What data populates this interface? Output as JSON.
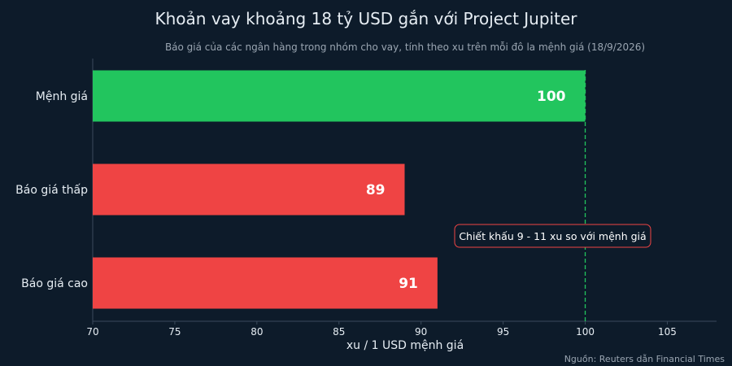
{
  "colors": {
    "background": "#0d1b2a",
    "par_bar": "#22c55e",
    "quote_bar": "#ef4444",
    "reference_line": "#22c55e",
    "annotation_border": "#ef4444",
    "text": "#e6edf3",
    "muted_text": "#9aa5b1",
    "axis": "#3b4a5c"
  },
  "chart_data": {
    "type": "bar",
    "orientation": "horizontal",
    "title": "Khoản vay khoảng 18 tỷ USD gắn với Project Jupiter",
    "subtitle": "Báo giá của các ngân hàng trong nhóm cho vay, tính theo xu trên mỗi đô la mệnh giá (18/9/2026)",
    "categories": [
      "Mệnh giá",
      "Báo giá thấp",
      "Báo giá cao"
    ],
    "values": [
      100,
      89,
      91
    ],
    "data_labels": [
      "100",
      "89",
      "91"
    ],
    "bar_colors": [
      "#22c55e",
      "#ef4444",
      "#ef4444"
    ],
    "xlabel": "xu / 1 USD mệnh giá",
    "ylabel": "",
    "xlim": [
      70,
      108
    ],
    "xticks": [
      70,
      75,
      80,
      85,
      90,
      95,
      100,
      105
    ],
    "reference_line": {
      "x": 100,
      "style": "dashed"
    },
    "annotation": {
      "text": "Chiết khấu 9 - 11 xu so với mệnh giá"
    },
    "source": "Nguồn: Reuters dẫn Financial Times",
    "grid": false,
    "legend": "none"
  }
}
